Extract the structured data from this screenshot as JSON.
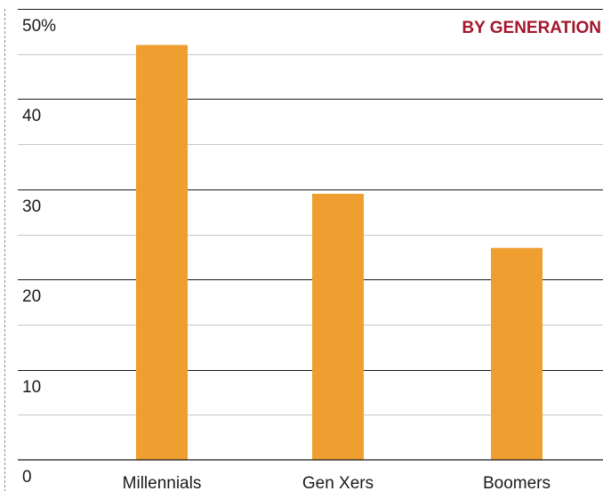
{
  "chart_data": {
    "type": "bar",
    "title": "BY GENERATION",
    "categories": [
      "Millennials",
      "Gen Xers",
      "Boomers"
    ],
    "values": [
      46,
      29.5,
      23.5
    ],
    "ylim": [
      0,
      50
    ],
    "yticks": [
      0,
      10,
      20,
      30,
      40,
      50
    ],
    "ytick_labels": [
      "0",
      "10",
      "20",
      "30",
      "40",
      "50%"
    ],
    "xlabel": "",
    "ylabel": "",
    "grid": true,
    "colors": {
      "bar": "#ef9f2f",
      "title": "#a3162b",
      "major_grid": "#1a1a1a",
      "minor_grid": "#c8c8c8",
      "border": "#8c8c8c"
    }
  }
}
